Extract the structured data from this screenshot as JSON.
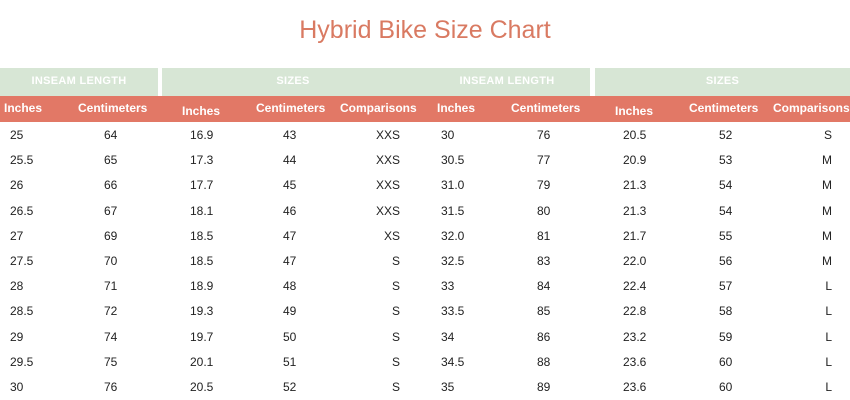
{
  "title": "Hybrid Bike Size Chart",
  "groups": [
    "INSEAM LENGTH",
    "SIZES",
    "INSEAM LENGTH",
    "SIZES"
  ],
  "columns": [
    "Inches",
    "Centimeters",
    "Inches",
    "Centimeters",
    "Comparisons",
    "Inches",
    "Centimeters",
    "Inches",
    "Centimeters",
    "Comparisons"
  ],
  "rows": [
    [
      "25",
      "64",
      "16.9",
      "43",
      "XXS",
      "30",
      "76",
      "20.5",
      "52",
      "S"
    ],
    [
      "25.5",
      "65",
      "17.3",
      "44",
      "XXS",
      "30.5",
      "77",
      "20.9",
      "53",
      "M"
    ],
    [
      "26",
      "66",
      "17.7",
      "45",
      "XXS",
      "31.0",
      "79",
      "21.3",
      "54",
      "M"
    ],
    [
      "26.5",
      "67",
      "18.1",
      "46",
      "XXS",
      "31.5",
      "80",
      "21.3",
      "54",
      "M"
    ],
    [
      "27",
      "69",
      "18.5",
      "47",
      "XS",
      "32.0",
      "81",
      "21.7",
      "55",
      "M"
    ],
    [
      "27.5",
      "70",
      "18.5",
      "47",
      "S",
      "32.5",
      "83",
      "22.0",
      "56",
      "M"
    ],
    [
      "28",
      "71",
      "18.9",
      "48",
      "S",
      "33",
      "84",
      "22.4",
      "57",
      "L"
    ],
    [
      "28.5",
      "72",
      "19.3",
      "49",
      "S",
      "33.5",
      "85",
      "22.8",
      "58",
      "L"
    ],
    [
      "29",
      "74",
      "19.7",
      "50",
      "S",
      "34",
      "86",
      "23.2",
      "59",
      "L"
    ],
    [
      "29.5",
      "75",
      "20.1",
      "51",
      "S",
      "34.5",
      "88",
      "23.6",
      "60",
      "L"
    ],
    [
      "30",
      "76",
      "20.5",
      "52",
      "S",
      "35",
      "89",
      "23.6",
      "60",
      "L"
    ]
  ]
}
